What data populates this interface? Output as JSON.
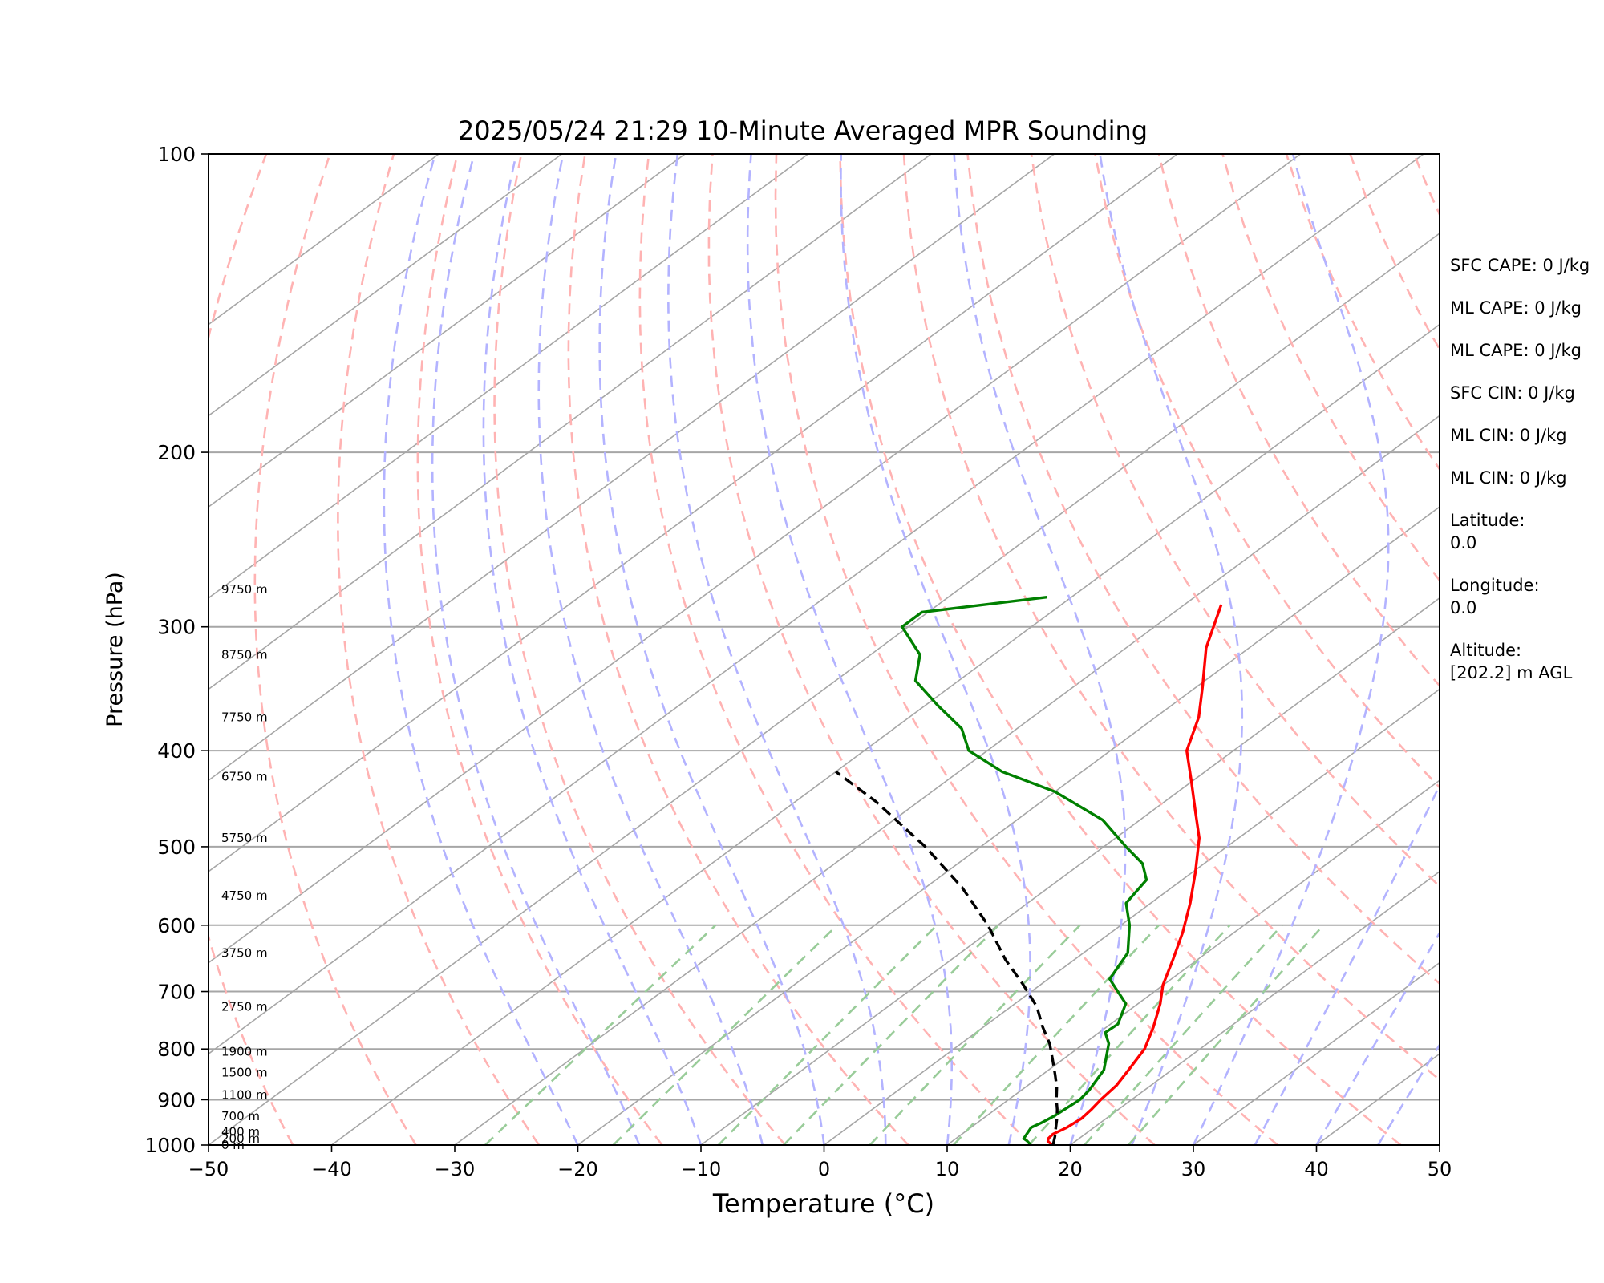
{
  "chart_data": {
    "type": "line",
    "title": "2025/05/24 21:29 10-Minute Averaged MPR Sounding",
    "xlabel": "Temperature (°C)",
    "ylabel": "Pressure (hPa)",
    "xlim": [
      -50,
      50
    ],
    "ylim": [
      1000,
      100
    ],
    "y_scale": "log",
    "skew": true,
    "grid": true,
    "x_ticks": [
      "−50",
      "−40",
      "−30",
      "−20",
      "−10",
      "0",
      "10",
      "20",
      "30",
      "40",
      "50"
    ],
    "x_tick_values": [
      -50,
      -40,
      -30,
      -20,
      -10,
      0,
      10,
      20,
      30,
      40,
      50
    ],
    "y_ticks": [
      "100",
      "200",
      "300",
      "400",
      "500",
      "600",
      "700",
      "800",
      "900",
      "1000"
    ],
    "y_tick_values": [
      100,
      200,
      300,
      400,
      500,
      600,
      700,
      800,
      900,
      1000
    ],
    "height_labels": [
      {
        "p": 1000,
        "text": "0 m"
      },
      {
        "p": 985,
        "text": "200 m"
      },
      {
        "p": 970,
        "text": "400 m"
      },
      {
        "p": 935,
        "text": "700 m"
      },
      {
        "p": 890,
        "text": "1100 m"
      },
      {
        "p": 845,
        "text": "1500 m"
      },
      {
        "p": 805,
        "text": "1900 m"
      },
      {
        "p": 725,
        "text": "2750 m"
      },
      {
        "p": 640,
        "text": "3750 m"
      },
      {
        "p": 560,
        "text": "4750 m"
      },
      {
        "p": 490,
        "text": "5750 m"
      },
      {
        "p": 425,
        "text": "6750 m"
      },
      {
        "p": 370,
        "text": "7750 m"
      },
      {
        "p": 320,
        "text": "8750 m"
      },
      {
        "p": 275,
        "text": "9750 m"
      }
    ],
    "series": [
      {
        "name": "",
        "role": "temperature",
        "color": "#ff0000",
        "dash": false,
        "x": [
          18.6,
          17.8,
          17.5,
          17.4,
          17.8,
          18.0,
          17.8,
          17.5,
          17.2,
          16.5,
          15.5,
          13.8,
          11.8,
          10.0,
          8.0,
          5.8,
          3.2,
          0.2,
          -3.2,
          -6.5,
          -10.0,
          -13.8,
          -16.5,
          -19.5,
          -23.5,
          -27.0
        ],
        "y": [
          1000,
          992,
          985,
          975,
          960,
          940,
          920,
          900,
          870,
          840,
          800,
          760,
          720,
          690,
          650,
          610,
          570,
          530,
          490,
          460,
          430,
          400,
          370,
          345,
          315,
          285
        ]
      },
      {
        "name": "",
        "role": "dewpoint",
        "color": "#008000",
        "dash": false,
        "x": [
          16.8,
          16.0,
          15.5,
          14.9,
          15.2,
          15.5,
          15.8,
          15.5,
          14.5,
          12.0,
          10.5,
          10.6,
          9.0,
          5.0,
          4.3,
          3.6,
          0.7,
          -2.0,
          -2.9,
          -5.0,
          -8.2,
          -13.0,
          -20.0,
          -26.5,
          -31.5,
          -34.5,
          -39.0,
          -43.5,
          -46.0,
          -50.5,
          -50.5,
          -42.0
        ],
        "y": [
          1000,
          990,
          985,
          960,
          950,
          935,
          900,
          880,
          840,
          790,
          770,
          755,
          720,
          680,
          660,
          640,
          600,
          570,
          540,
          520,
          500,
          470,
          440,
          420,
          400,
          380,
          360,
          340,
          320,
          300,
          290,
          280
        ]
      },
      {
        "name": "",
        "role": "parcel",
        "color": "#000000",
        "dash": true,
        "x": [
          18.6,
          17.8,
          16.9,
          16.0,
          15.0,
          13.9,
          12.6,
          11.1,
          9.2,
          7.2,
          4.8,
          2.1,
          -1.3,
          -5.6,
          -10.8,
          -17.0,
          -24.5,
          -33.5,
          -40.0
        ],
        "y": [
          1000,
          980,
          960,
          940,
          920,
          900,
          875,
          850,
          820,
          790,
          760,
          725,
          690,
          650,
          600,
          550,
          500,
          450,
          420
        ]
      }
    ],
    "annotations": [
      {
        "lines": [
          "SFC CAPE: 0 J/kg"
        ]
      },
      {
        "lines": [
          "ML CAPE: 0 J/kg"
        ]
      },
      {
        "lines": [
          "ML CAPE: 0 J/kg"
        ]
      },
      {
        "lines": [
          "SFC CIN: 0 J/kg"
        ]
      },
      {
        "lines": [
          "ML CIN: 0 J/kg"
        ]
      },
      {
        "lines": [
          "ML CIN: 0 J/kg"
        ]
      },
      {
        "lines": [
          "Latitude:",
          "0.0"
        ]
      },
      {
        "lines": [
          "Longitude:",
          "0.0"
        ]
      },
      {
        "lines": [
          "Altitude:",
          "[202.2] m AGL"
        ]
      }
    ],
    "colors": {
      "isotherm": "#a6a6a6",
      "dry_adiabat": "#ffb3b3",
      "moist_adiabat": "#b3b3ff",
      "mixing_ratio": "#99cc99"
    }
  }
}
